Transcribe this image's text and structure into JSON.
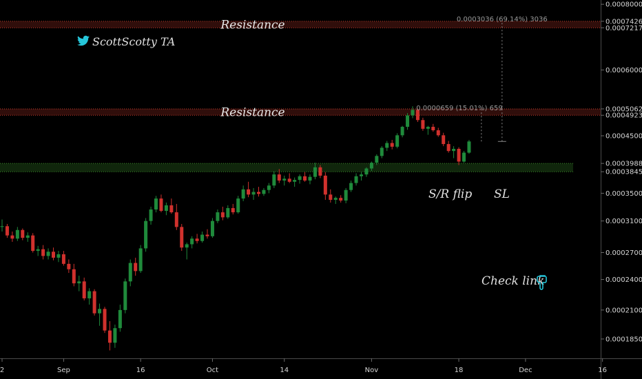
{
  "chart_data": {
    "type": "candlestick",
    "watermark": "ScottScotty TA",
    "colors": {
      "up": "#1f8a3b",
      "down": "#d0312d",
      "resistance": "#c0392b",
      "support": "#3a8a2a",
      "accent": "#26c6da"
    },
    "y_axis": {
      "scale": "log",
      "ylim": [
        0.00017,
        0.000815
      ],
      "tick_labels": [
        "0.0008000",
        "0.0007426",
        "0.0007217",
        "0.0006000",
        "0.0005062",
        "0.0004923",
        "0.0004500",
        "0.0003988",
        "0.0003845",
        "0.0003500",
        "0.0003100",
        "0.0002700",
        "0.0002400",
        "0.0002100",
        "0.0001850"
      ]
    },
    "x_axis": {
      "tick_labels": [
        {
          "label": "2",
          "day": 0
        },
        {
          "label": "Sep",
          "day": 12
        },
        {
          "label": "16",
          "day": 27
        },
        {
          "label": "Oct",
          "day": 41
        },
        {
          "label": "14",
          "day": 55
        },
        {
          "label": "Nov",
          "day": 72
        },
        {
          "label": "18",
          "day": 89
        },
        {
          "label": "Dec",
          "day": 102
        },
        {
          "label": "16",
          "day": 117
        }
      ]
    },
    "zones": [
      {
        "type": "resistance",
        "label": "Resistance",
        "low": 0.0007217,
        "high": 0.0007426
      },
      {
        "type": "resistance",
        "label": "Resistance",
        "low": 0.0004923,
        "high": 0.0005062
      },
      {
        "type": "support",
        "label": "S/R flip",
        "low": 0.0003845,
        "high": 0.0003988
      }
    ],
    "annotations": {
      "sr_flip": "S/R flip",
      "stop_loss": "SL",
      "check_link": "Check link"
    },
    "measurements": [
      {
        "text": "0.0003036 (69.14%) 3036",
        "from": 0.000439,
        "to": 0.000742
      },
      {
        "text": "0.0000659 (15.01%) 659",
        "from": 0.000439,
        "to": 0.000505
      }
    ],
    "candles": [
      [
        0.000302,
        0.000312,
        0.000296,
        0.000303
      ],
      [
        0.000303,
        0.000306,
        0.000288,
        0.000291
      ],
      [
        0.000291,
        0.000296,
        0.000283,
        0.000287
      ],
      [
        0.000287,
        0.000302,
        0.000284,
        0.000298
      ],
      [
        0.000298,
        0.0003,
        0.000285,
        0.000288
      ],
      [
        0.000288,
        0.000295,
        0.000283,
        0.000291
      ],
      [
        0.000291,
        0.000294,
        0.00027,
        0.000272
      ],
      [
        0.000272,
        0.000278,
        0.000266,
        0.000274
      ],
      [
        0.000274,
        0.000279,
        0.000262,
        0.000266
      ],
      [
        0.000266,
        0.000275,
        0.000262,
        0.000271
      ],
      [
        0.000271,
        0.000276,
        0.000261,
        0.000264
      ],
      [
        0.000264,
        0.000272,
        0.000259,
        0.000268
      ],
      [
        0.000268,
        0.000272,
        0.000255,
        0.000257
      ],
      [
        0.000257,
        0.000262,
        0.000247,
        0.000251
      ],
      [
        0.000251,
        0.000257,
        0.000233,
        0.000236
      ],
      [
        0.000236,
        0.000244,
        0.000228,
        0.000238
      ],
      [
        0.000238,
        0.000242,
        0.000219,
        0.000221
      ],
      [
        0.000221,
        0.000231,
        0.000215,
        0.000228
      ],
      [
        0.000228,
        0.00023,
        0.000205,
        0.000207
      ],
      [
        0.000207,
        0.000216,
        0.000196,
        0.000211
      ],
      [
        0.000211,
        0.000213,
        0.00019,
        0.000192
      ],
      [
        0.000192,
        0.0002,
        0.000176,
        0.000182
      ],
      [
        0.000182,
        0.000197,
        0.000178,
        0.000194
      ],
      [
        0.000194,
        0.000215,
        0.000191,
        0.00021
      ],
      [
        0.00021,
        0.000241,
        0.000207,
        0.000238
      ],
      [
        0.000238,
        0.000262,
        0.000233,
        0.000258
      ],
      [
        0.000258,
        0.000264,
        0.000244,
        0.000249
      ],
      [
        0.000249,
        0.000279,
        0.000247,
        0.000275
      ],
      [
        0.000275,
        0.000314,
        0.000271,
        0.00031
      ],
      [
        0.00031,
        0.00033,
        0.000305,
        0.000326
      ],
      [
        0.000326,
        0.000346,
        0.000322,
        0.000342
      ],
      [
        0.000342,
        0.000348,
        0.000322,
        0.000324
      ],
      [
        0.000324,
        0.000336,
        0.000318,
        0.000332
      ],
      [
        0.000332,
        0.000342,
        0.00032,
        0.000322
      ],
      [
        0.000322,
        0.000334,
        0.000298,
        0.000302
      ],
      [
        0.000302,
        0.000306,
        0.000272,
        0.000276
      ],
      [
        0.000276,
        0.000282,
        0.000262,
        0.00028
      ],
      [
        0.00028,
        0.00029,
        0.000275,
        0.000287
      ],
      [
        0.000287,
        0.000293,
        0.000281,
        0.000284
      ],
      [
        0.000284,
        0.000296,
        0.000282,
        0.000292
      ],
      [
        0.000292,
        0.000299,
        0.000287,
        0.00029
      ],
      [
        0.00029,
        0.000314,
        0.000288,
        0.00031
      ],
      [
        0.00031,
        0.000326,
        0.000307,
        0.000322
      ],
      [
        0.000322,
        0.00033,
        0.000311,
        0.000315
      ],
      [
        0.000315,
        0.000332,
        0.000313,
        0.000328
      ],
      [
        0.000328,
        0.000334,
        0.000319,
        0.000322
      ],
      [
        0.000322,
        0.000346,
        0.00032,
        0.000342
      ],
      [
        0.000342,
        0.000362,
        0.000338,
        0.000356
      ],
      [
        0.000356,
        0.000368,
        0.000344,
        0.000348
      ],
      [
        0.000348,
        0.000358,
        0.00034,
        0.000352
      ],
      [
        0.000352,
        0.00036,
        0.000345,
        0.000349
      ],
      [
        0.000349,
        0.000358,
        0.000346,
        0.000355
      ],
      [
        0.000355,
        0.000366,
        0.00035,
        0.000362
      ],
      [
        0.000362,
        0.000385,
        0.000358,
        0.00038
      ],
      [
        0.00038,
        0.000389,
        0.000366,
        0.00037
      ],
      [
        0.00037,
        0.000378,
        0.000362,
        0.000373
      ],
      [
        0.000373,
        0.000382,
        0.000366,
        0.000368
      ],
      [
        0.000368,
        0.000375,
        0.00036,
        0.000371
      ],
      [
        0.000371,
        0.00038,
        0.000365,
        0.000377
      ],
      [
        0.000377,
        0.000384,
        0.000368,
        0.00037
      ],
      [
        0.00037,
        0.00038,
        0.000364,
        0.000376
      ],
      [
        0.000376,
        0.0004,
        0.000372,
        0.000392
      ],
      [
        0.000392,
        0.000396,
        0.000374,
        0.000378
      ],
      [
        0.000378,
        0.000384,
        0.00034,
        0.000348
      ],
      [
        0.000348,
        0.000356,
        0.000336,
        0.00034
      ],
      [
        0.00034,
        0.000345,
        0.000334,
        0.000343
      ],
      [
        0.000343,
        0.000347,
        0.000336,
        0.000339
      ],
      [
        0.000339,
        0.000358,
        0.000335,
        0.000355
      ],
      [
        0.000355,
        0.00037,
        0.000352,
        0.000366
      ],
      [
        0.000366,
        0.000382,
        0.000362,
        0.000377
      ],
      [
        0.000377,
        0.000384,
        0.00037,
        0.00038
      ],
      [
        0.00038,
        0.000392,
        0.000376,
        0.00039
      ],
      [
        0.00039,
        0.000402,
        0.000386,
        0.0004
      ],
      [
        0.0004,
        0.000415,
        0.000396,
        0.000412
      ],
      [
        0.000412,
        0.00043,
        0.000408,
        0.000427
      ],
      [
        0.000427,
        0.00044,
        0.000421,
        0.000436
      ],
      [
        0.000436,
        0.000442,
        0.000424,
        0.000429
      ],
      [
        0.000429,
        0.000455,
        0.000426,
        0.000451
      ],
      [
        0.000451,
        0.00047,
        0.000447,
        0.000468
      ],
      [
        0.000468,
        0.000497,
        0.000462,
        0.000492
      ],
      [
        0.000492,
        0.000512,
        0.000486,
        0.000504
      ],
      [
        0.000504,
        0.000506,
        0.000478,
        0.000482
      ],
      [
        0.000482,
        0.000487,
        0.00046,
        0.000464
      ],
      [
        0.000464,
        0.00047,
        0.000452,
        0.000468
      ],
      [
        0.000468,
        0.000474,
        0.000458,
        0.000461
      ],
      [
        0.000461,
        0.000466,
        0.000448,
        0.000451
      ],
      [
        0.000451,
        0.000456,
        0.00043,
        0.000434
      ],
      [
        0.000434,
        0.00044,
        0.000418,
        0.000421
      ],
      [
        0.000421,
        0.00043,
        0.000408,
        0.000425
      ],
      [
        0.000425,
        0.000428,
        0.000396,
        0.000402
      ],
      [
        0.000402,
        0.000421,
        0.0004,
        0.000418
      ],
      [
        0.000418,
        0.000442,
        0.000416,
        0.000439
      ]
    ]
  }
}
